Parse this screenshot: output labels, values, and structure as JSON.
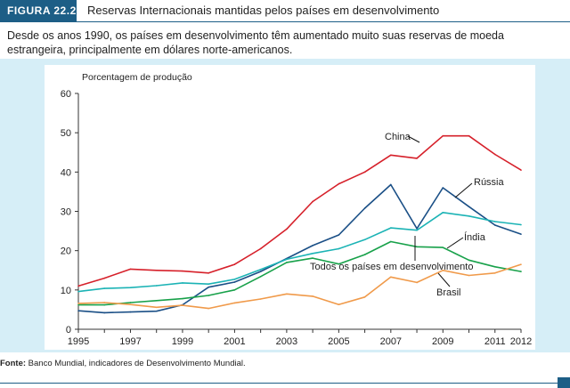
{
  "header": {
    "figure_label": "FIGURA 22.2",
    "title": "Reservas Internacionais mantidas pelos países em desenvolvimento"
  },
  "description": "Desde os anos 1990, os países em desenvolvimento têm aumentado muito suas reservas de moeda estrangeira, principalmente em dólares norte-americanos.",
  "footnote": {
    "label": "Fonte:",
    "text": " Banco Mundial, indicadores de Desenvolvimento Mundial."
  },
  "colors": {
    "accent": "#1d5e86",
    "panel": "#d6eef7",
    "china": "#d6202a",
    "russia": "#1a4f86",
    "india": "#18a14a",
    "all": "#1bb3b5",
    "brazil": "#f09a4a"
  },
  "chart_data": {
    "type": "line",
    "title": "",
    "xlabel": "",
    "ylabel": "Porcentagem de produção",
    "x": [
      1995,
      1996,
      1997,
      1998,
      1999,
      2000,
      2001,
      2002,
      2003,
      2004,
      2005,
      2006,
      2007,
      2008,
      2009,
      2010,
      2011,
      2012
    ],
    "xticks": [
      1995,
      1997,
      1999,
      2001,
      2003,
      2005,
      2007,
      2009,
      2011,
      2012
    ],
    "xlim": [
      1995,
      2012
    ],
    "ylim": [
      0,
      60
    ],
    "yticks": [
      0,
      10,
      20,
      30,
      40,
      50,
      60
    ],
    "grid": false,
    "series": [
      {
        "key": "china",
        "name": "China",
        "color": "#d6202a",
        "values": [
          11,
          13,
          15.3,
          15,
          14.8,
          14.3,
          16.5,
          20.5,
          25.5,
          32.5,
          37,
          40,
          44.3,
          43.5,
          49.2,
          49.2,
          44.5,
          40.5
        ]
      },
      {
        "key": "russia",
        "name": "Rússia",
        "color": "#1a4f86",
        "values": [
          4.7,
          4.2,
          4.4,
          4.6,
          6.2,
          10.7,
          12,
          14.7,
          18,
          21.3,
          24,
          30.8,
          36.8,
          25.6,
          36,
          31.2,
          26.5,
          24.2
        ]
      },
      {
        "key": "all",
        "name": "Todos os países em desenvolvimento",
        "color": "#1bb3b5",
        "values": [
          9.6,
          10.4,
          10.6,
          11.1,
          11.8,
          11.5,
          12.7,
          15.2,
          17.8,
          19.3,
          20.5,
          22.8,
          25.8,
          25.2,
          29.7,
          28.8,
          27.4,
          26.6
        ]
      },
      {
        "key": "india",
        "name": "Índia",
        "color": "#18a14a",
        "values": [
          6.2,
          6.2,
          6.8,
          7.3,
          7.8,
          8.6,
          10,
          13.4,
          17,
          18.1,
          16.6,
          19,
          22.3,
          21,
          20.8,
          17.6,
          15.9,
          14.7
        ]
      },
      {
        "key": "brazil",
        "name": "Brasil",
        "color": "#f09a4a",
        "values": [
          6.6,
          6.8,
          6.3,
          5.6,
          6.1,
          5.3,
          6.7,
          7.7,
          9,
          8.4,
          6.3,
          8.2,
          13.3,
          11.9,
          15,
          13.7,
          14.3,
          16.5
        ]
      }
    ],
    "labels": [
      {
        "key": "china",
        "text": "China"
      },
      {
        "key": "russia",
        "text": "Rússia"
      },
      {
        "key": "india",
        "text": "Índia"
      },
      {
        "key": "all",
        "text": "Todos os países em desenvolvimento"
      },
      {
        "key": "brazil",
        "text": "Brasil"
      }
    ]
  }
}
